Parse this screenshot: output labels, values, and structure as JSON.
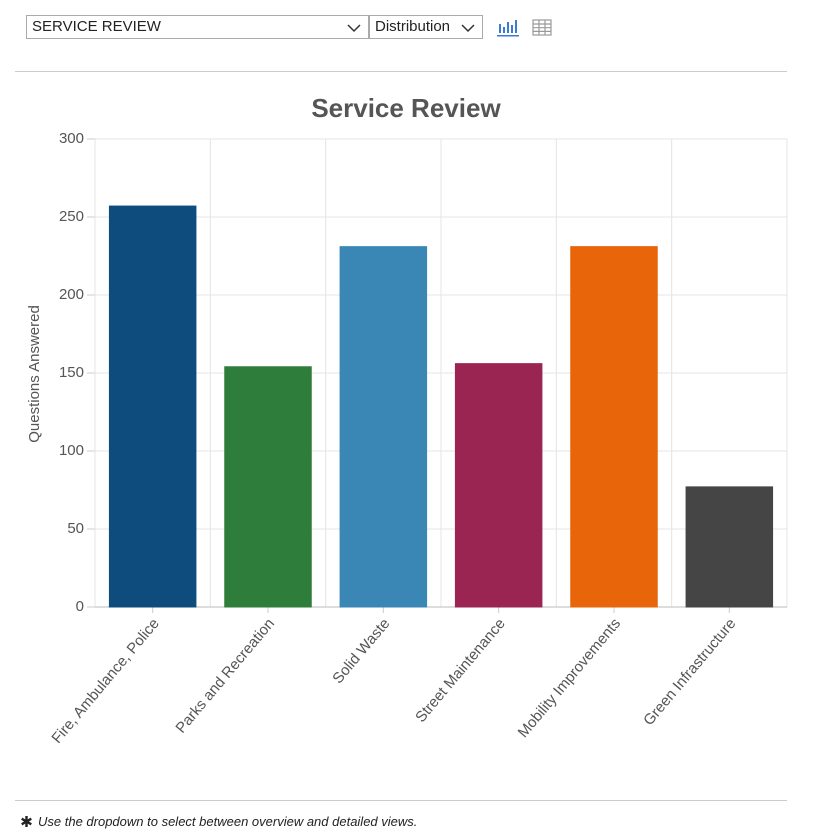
{
  "controls": {
    "view_select": "SERVICE REVIEW",
    "mode_select": "Distribution"
  },
  "chart_data": {
    "type": "bar",
    "title": "Service Review",
    "y_label": "Questions Answered",
    "categories": [
      "Fire, Ambulance, Police",
      "Parks and Recreation",
      "Solid Waste",
      "Street Maintenance",
      "Mobility Improvements",
      "Green Infrastructure"
    ],
    "values": [
      257,
      154,
      231,
      156,
      231,
      77
    ],
    "colors": [
      "#0e4c7e",
      "#2e7d3a",
      "#3a87b6",
      "#9b2552",
      "#e8650a",
      "#454545"
    ],
    "ylim": [
      0,
      300
    ],
    "yticks": [
      0,
      50,
      100,
      150,
      200,
      250,
      300
    ],
    "grid": true
  },
  "footnote": "Use the dropdown to select between overview and detailed views."
}
